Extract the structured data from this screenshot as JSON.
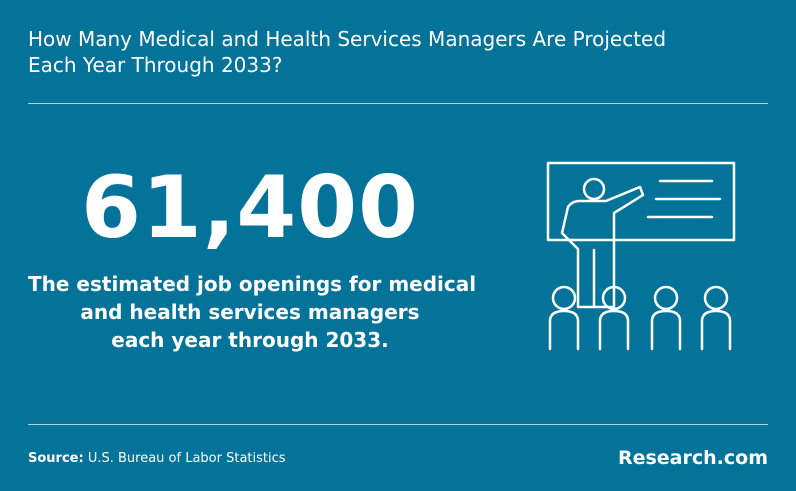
{
  "header": {
    "title_lines": [
      "How Many Medical and Health Services Managers Are Projected",
      "Each Year Through 2033?"
    ]
  },
  "stat": {
    "value": "61,400",
    "description_lines": [
      "The estimated job openings for medical",
      "and health services managers",
      "each year through 2033."
    ]
  },
  "footer": {
    "source_label": "Source:",
    "source": "U.S. Bureau of Labor Statistics",
    "brand": "Research.com"
  }
}
